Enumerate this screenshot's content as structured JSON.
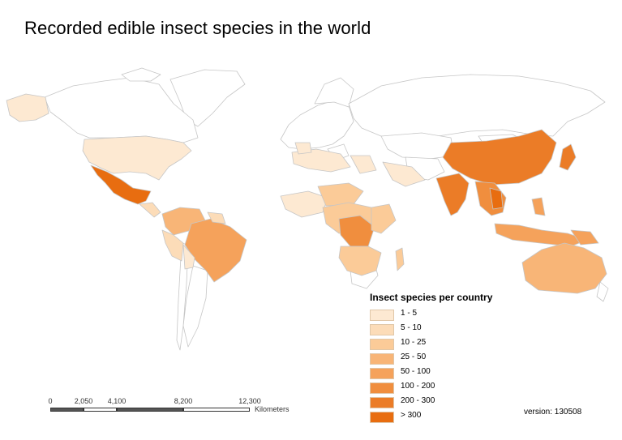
{
  "title": "Recorded edible insect species in the world",
  "legend": {
    "title": "Insect species per country",
    "classes": [
      {
        "label": "1 -  5",
        "color": "#fde9d2"
      },
      {
        "label": "5 - 10",
        "color": "#fcdcb8"
      },
      {
        "label": "10 - 25",
        "color": "#fbcb98"
      },
      {
        "label": "25 - 50",
        "color": "#f8b577"
      },
      {
        "label": "50 - 100",
        "color": "#f5a25b"
      },
      {
        "label": "100 - 200",
        "color": "#f08e3e"
      },
      {
        "label": "200 - 300",
        "color": "#eb7c27"
      },
      {
        "label": "> 300",
        "color": "#e86d10"
      }
    ]
  },
  "scale": {
    "ticks": [
      "0",
      "2,050",
      "4,100",
      "8,200",
      "12,300"
    ],
    "units": "Kilometers"
  },
  "version": "version: 130508",
  "colors": {
    "background": "#ffffff",
    "border": "#bdbdbd",
    "no_data": "#ffffff"
  }
}
